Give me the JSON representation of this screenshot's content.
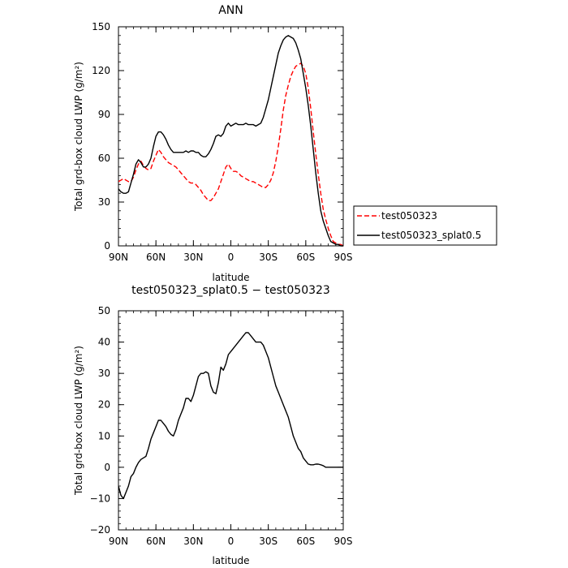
{
  "chart_data": [
    {
      "type": "line",
      "title": "ANN",
      "ylabel": "Total grd-box cloud LWP (g/m²)",
      "xlabel": "latitude",
      "xlim": [
        90,
        -90
      ],
      "ylim": [
        0,
        150
      ],
      "x_ticks": [
        90,
        60,
        30,
        0,
        -30,
        -60,
        -90
      ],
      "x_tick_labels": [
        "90N",
        "60N",
        "30N",
        "0",
        "30S",
        "60S",
        "90S"
      ],
      "y_ticks": [
        0,
        30,
        60,
        90,
        120,
        150
      ],
      "y_tick_labels": [
        "0",
        "30",
        "60",
        "90",
        "120",
        "150"
      ],
      "legend": {
        "placement": "outside-right"
      },
      "series": [
        {
          "name": "test050323",
          "color": "#ff0000",
          "dash": "dashed",
          "x": [
            90,
            88,
            86,
            84,
            82,
            80,
            78,
            76,
            74,
            72,
            70,
            68,
            66,
            64,
            62,
            60,
            58,
            56,
            54,
            52,
            50,
            48,
            46,
            44,
            42,
            40,
            38,
            36,
            34,
            32,
            30,
            28,
            26,
            24,
            22,
            20,
            18,
            16,
            14,
            12,
            10,
            8,
            6,
            4,
            2,
            0,
            -2,
            -4,
            -6,
            -8,
            -10,
            -12,
            -14,
            -16,
            -18,
            -20,
            -22,
            -24,
            -26,
            -28,
            -30,
            -32,
            -34,
            -36,
            -38,
            -40,
            -42,
            -44,
            -46,
            -48,
            -50,
            -52,
            -54,
            -56,
            -58,
            -60,
            -62,
            -64,
            -66,
            -68,
            -70,
            -72,
            -74,
            -76,
            -78,
            -80,
            -82,
            -84,
            -86,
            -88,
            -90
          ],
          "y": [
            44,
            45,
            46,
            45,
            44,
            44,
            47,
            52,
            56,
            58,
            55,
            53,
            52,
            53,
            58,
            62,
            66,
            64,
            61,
            59,
            57,
            56,
            55,
            54,
            52,
            50,
            48,
            46,
            44,
            43,
            43,
            42,
            40,
            38,
            35,
            33,
            31,
            31,
            33,
            36,
            39,
            44,
            49,
            54,
            56,
            53,
            51,
            51,
            50,
            48,
            47,
            46,
            45,
            44,
            44,
            43,
            42,
            41,
            40,
            40,
            42,
            45,
            50,
            58,
            68,
            80,
            93,
            103,
            110,
            116,
            120,
            123,
            124,
            125,
            123,
            118,
            108,
            94,
            78,
            63,
            49,
            36,
            25,
            18,
            12,
            7,
            3,
            2,
            1,
            1,
            0
          ]
        },
        {
          "name": "test050323_splat0.5",
          "color": "#000000",
          "dash": "solid",
          "x": [
            90,
            88,
            86,
            84,
            82,
            80,
            78,
            76,
            74,
            72,
            70,
            68,
            66,
            64,
            62,
            60,
            58,
            56,
            54,
            52,
            50,
            48,
            46,
            44,
            42,
            40,
            38,
            36,
            34,
            32,
            30,
            28,
            26,
            24,
            22,
            20,
            18,
            16,
            14,
            12,
            10,
            8,
            6,
            4,
            2,
            0,
            -2,
            -4,
            -6,
            -8,
            -10,
            -12,
            -14,
            -16,
            -18,
            -20,
            -22,
            -24,
            -26,
            -28,
            -30,
            -32,
            -34,
            -36,
            -38,
            -40,
            -42,
            -44,
            -46,
            -48,
            -50,
            -52,
            -54,
            -56,
            -58,
            -60,
            -62,
            -64,
            -66,
            -68,
            -70,
            -72,
            -74,
            -76,
            -78,
            -80,
            -82,
            -84,
            -86,
            -88,
            -90
          ],
          "y": [
            39,
            37,
            36,
            36,
            37,
            43,
            49,
            56,
            59,
            57,
            54,
            54,
            56,
            60,
            68,
            75,
            78,
            78,
            76,
            73,
            69,
            66,
            64,
            64,
            64,
            64,
            64,
            65,
            64,
            65,
            65,
            64,
            64,
            62,
            61,
            61,
            63,
            66,
            70,
            75,
            76,
            75,
            77,
            82,
            84,
            82,
            83,
            84,
            83,
            83,
            83,
            84,
            83,
            83,
            83,
            82,
            83,
            84,
            88,
            94,
            100,
            108,
            116,
            124,
            132,
            137,
            141,
            143,
            144,
            143,
            142,
            139,
            134,
            128,
            118,
            108,
            96,
            82,
            66,
            50,
            36,
            24,
            17,
            12,
            7,
            3,
            2,
            1,
            1,
            0,
            0
          ]
        }
      ]
    },
    {
      "type": "line",
      "title": "test050323_splat0.5 − test050323",
      "ylabel": "Total grd-box cloud LWP (g/m²)",
      "xlabel": "latitude",
      "xlim": [
        90,
        -90
      ],
      "ylim": [
        -20,
        50
      ],
      "x_ticks": [
        90,
        60,
        30,
        0,
        -30,
        -60,
        -90
      ],
      "x_tick_labels": [
        "90N",
        "60N",
        "30N",
        "0",
        "30S",
        "60S",
        "90S"
      ],
      "y_ticks": [
        -20,
        -10,
        0,
        10,
        20,
        30,
        40,
        50
      ],
      "y_tick_labels": [
        "−20",
        "−10",
        "0",
        "10",
        "20",
        "30",
        "40",
        "50"
      ],
      "series": [
        {
          "color": "#000000",
          "dash": "solid",
          "x": [
            90,
            88,
            86,
            84,
            82,
            80,
            78,
            76,
            74,
            72,
            70,
            68,
            66,
            64,
            62,
            60,
            58,
            56,
            54,
            52,
            50,
            48,
            46,
            44,
            42,
            40,
            38,
            36,
            34,
            32,
            30,
            28,
            26,
            24,
            22,
            20,
            18,
            16,
            14,
            12,
            10,
            8,
            6,
            4,
            2,
            0,
            -2,
            -4,
            -6,
            -8,
            -10,
            -12,
            -14,
            -16,
            -18,
            -20,
            -22,
            -24,
            -26,
            -28,
            -30,
            -32,
            -34,
            -36,
            -38,
            -40,
            -42,
            -44,
            -46,
            -48,
            -50,
            -52,
            -54,
            -56,
            -58,
            -60,
            -62,
            -64,
            -66,
            -68,
            -70,
            -72,
            -74,
            -76,
            -78,
            -80,
            -82,
            -84,
            -86,
            -88,
            -90
          ],
          "y": [
            -6,
            -9,
            -10,
            -8,
            -6,
            -3,
            -2,
            0,
            1.5,
            2.5,
            3,
            3.5,
            6,
            9,
            11,
            13,
            15,
            15,
            14,
            13,
            11.5,
            10.5,
            10,
            12,
            15,
            17,
            19,
            22,
            22,
            21,
            23,
            26,
            29,
            30,
            30,
            30.5,
            30,
            26,
            24,
            23.5,
            27,
            32,
            31,
            33,
            36,
            37,
            38,
            39,
            40,
            41,
            42,
            43,
            43,
            42,
            41,
            40,
            40,
            40,
            39,
            37,
            35,
            32,
            29,
            26,
            24,
            22,
            20,
            18,
            16,
            13,
            10,
            8,
            6,
            5,
            3,
            2,
            1,
            0.8,
            0.8,
            1,
            1,
            0.8,
            0.5,
            0,
            0,
            0,
            0,
            0,
            0,
            0,
            0
          ]
        }
      ]
    }
  ]
}
